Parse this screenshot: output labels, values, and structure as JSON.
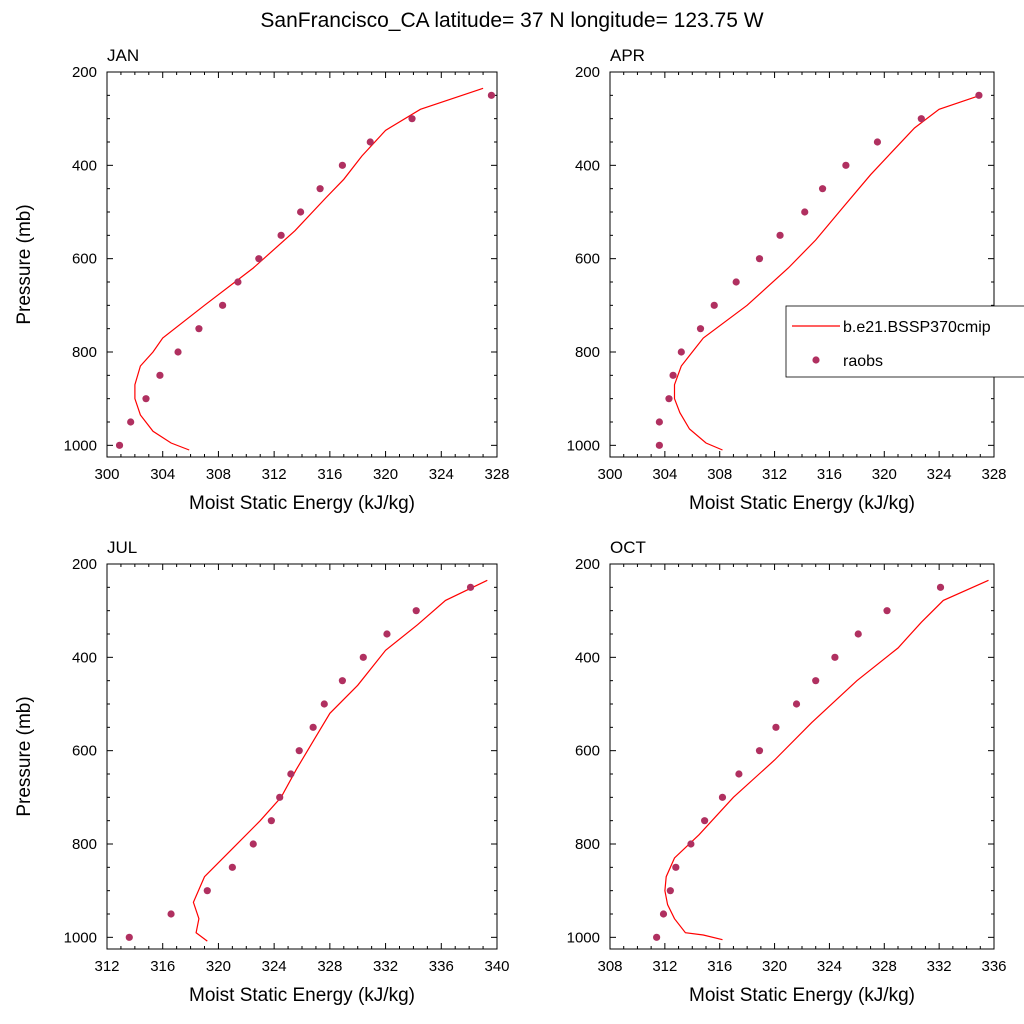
{
  "figure": {
    "title": "SanFrancisco_CA  latitude= 37 N longitude= 123.75 W"
  },
  "colors": {
    "model": "#ff0000",
    "obs": "#b03060",
    "axes": "#000000"
  },
  "legend": {
    "entries": [
      {
        "label": "b.e21.BSSP370cmip",
        "marker": "line",
        "color": "#ff0000"
      },
      {
        "label": "raobs",
        "marker": "dot",
        "color": "#b03060"
      }
    ],
    "placement": "right of APR panel, partially clipped"
  },
  "chart_data": [
    {
      "type": "line",
      "title": "JAN",
      "xlabel": "Moist Static Energy (kJ/kg)",
      "ylabel": "Pressure (mb)",
      "xlim": [
        300,
        328
      ],
      "xticks": [
        300,
        304,
        308,
        312,
        316,
        320,
        324,
        328
      ],
      "ylim": [
        1025,
        200
      ],
      "yticks": [
        200,
        400,
        600,
        800,
        1000
      ],
      "series": [
        {
          "name": "b.e21.BSSP370cmip",
          "kind": "line",
          "points": [
            [
              305.9,
              1010
            ],
            [
              304.6,
              995
            ],
            [
              303.3,
              970
            ],
            [
              302.4,
              935
            ],
            [
              302.0,
              900
            ],
            [
              302.0,
              870
            ],
            [
              302.4,
              830
            ],
            [
              303.3,
              800
            ],
            [
              304.0,
              770
            ],
            [
              307.0,
              700
            ],
            [
              310.5,
              620
            ],
            [
              313.5,
              540
            ],
            [
              315.7,
              470
            ],
            [
              317.0,
              430
            ],
            [
              318.3,
              380
            ],
            [
              320.0,
              325
            ],
            [
              322.5,
              280
            ],
            [
              327.0,
              235
            ]
          ]
        },
        {
          "name": "raobs",
          "kind": "scatter",
          "points": [
            [
              300.9,
              1000
            ],
            [
              301.7,
              950
            ],
            [
              302.8,
              900
            ],
            [
              303.8,
              850
            ],
            [
              305.1,
              800
            ],
            [
              306.6,
              750
            ],
            [
              308.3,
              700
            ],
            [
              309.4,
              650
            ],
            [
              310.9,
              600
            ],
            [
              312.5,
              550
            ],
            [
              313.9,
              500
            ],
            [
              315.3,
              450
            ],
            [
              316.9,
              400
            ],
            [
              318.9,
              350
            ],
            [
              321.9,
              300
            ],
            [
              327.6,
              250
            ]
          ]
        }
      ]
    },
    {
      "type": "line",
      "title": "APR",
      "xlabel": "Moist Static Energy (kJ/kg)",
      "ylabel": "",
      "xlim": [
        300,
        328
      ],
      "xticks": [
        300,
        304,
        308,
        312,
        316,
        320,
        324,
        328
      ],
      "ylim": [
        1025,
        200
      ],
      "yticks": [
        200,
        400,
        600,
        800,
        1000
      ],
      "series": [
        {
          "name": "b.e21.BSSP370cmip",
          "kind": "line",
          "points": [
            [
              308.2,
              1010
            ],
            [
              307.0,
              995
            ],
            [
              305.8,
              965
            ],
            [
              305.1,
              930
            ],
            [
              304.7,
              900
            ],
            [
              304.7,
              870
            ],
            [
              305.2,
              830
            ],
            [
              306.0,
              800
            ],
            [
              306.8,
              770
            ],
            [
              310.0,
              700
            ],
            [
              313.0,
              620
            ],
            [
              315.0,
              560
            ],
            [
              317.0,
              490
            ],
            [
              319.0,
              420
            ],
            [
              320.6,
              370
            ],
            [
              322.2,
              320
            ],
            [
              324.0,
              280
            ],
            [
              327.0,
              250
            ]
          ]
        },
        {
          "name": "raobs",
          "kind": "scatter",
          "points": [
            [
              303.6,
              1000
            ],
            [
              303.6,
              950
            ],
            [
              304.3,
              900
            ],
            [
              304.6,
              850
            ],
            [
              305.2,
              800
            ],
            [
              306.6,
              750
            ],
            [
              307.6,
              700
            ],
            [
              309.2,
              650
            ],
            [
              310.9,
              600
            ],
            [
              312.4,
              550
            ],
            [
              314.2,
              500
            ],
            [
              315.5,
              450
            ],
            [
              317.2,
              400
            ],
            [
              319.5,
              350
            ],
            [
              322.7,
              300
            ],
            [
              326.9,
              250
            ]
          ]
        }
      ]
    },
    {
      "type": "line",
      "title": "JUL",
      "xlabel": "Moist Static Energy (kJ/kg)",
      "ylabel": "Pressure (mb)",
      "xlim": [
        312,
        340
      ],
      "xticks": [
        312,
        316,
        320,
        324,
        328,
        332,
        336,
        340
      ],
      "ylim": [
        1025,
        200
      ],
      "yticks": [
        200,
        400,
        600,
        800,
        1000
      ],
      "series": [
        {
          "name": "b.e21.BSSP370cmip",
          "kind": "line",
          "points": [
            [
              319.2,
              1008
            ],
            [
              318.4,
              990
            ],
            [
              318.6,
              960
            ],
            [
              318.2,
              925
            ],
            [
              319.0,
              870
            ],
            [
              321.0,
              810
            ],
            [
              323.0,
              750
            ],
            [
              324.5,
              700
            ],
            [
              325.6,
              640
            ],
            [
              326.8,
              580
            ],
            [
              328.0,
              520
            ],
            [
              330.0,
              460
            ],
            [
              332.0,
              385
            ],
            [
              334.3,
              330
            ],
            [
              336.3,
              278
            ],
            [
              339.3,
              235
            ]
          ]
        },
        {
          "name": "raobs",
          "kind": "scatter",
          "points": [
            [
              313.6,
              1000
            ],
            [
              316.6,
              950
            ],
            [
              319.2,
              900
            ],
            [
              321.0,
              850
            ],
            [
              322.5,
              800
            ],
            [
              323.8,
              750
            ],
            [
              324.4,
              700
            ],
            [
              325.2,
              650
            ],
            [
              325.8,
              600
            ],
            [
              326.8,
              550
            ],
            [
              327.6,
              500
            ],
            [
              328.9,
              450
            ],
            [
              330.4,
              400
            ],
            [
              332.1,
              350
            ],
            [
              334.2,
              300
            ],
            [
              338.1,
              250
            ]
          ]
        }
      ]
    },
    {
      "type": "line",
      "title": "OCT",
      "xlabel": "Moist Static Energy (kJ/kg)",
      "ylabel": "",
      "xlim": [
        308,
        336
      ],
      "xticks": [
        308,
        312,
        316,
        320,
        324,
        328,
        332,
        336
      ],
      "ylim": [
        1025,
        200
      ],
      "yticks": [
        200,
        400,
        600,
        800,
        1000
      ],
      "series": [
        {
          "name": "b.e21.BSSP370cmip",
          "kind": "line",
          "points": [
            [
              316.2,
              1005
            ],
            [
              314.8,
              995
            ],
            [
              313.5,
              990
            ],
            [
              312.7,
              960
            ],
            [
              312.2,
              930
            ],
            [
              312.0,
              900
            ],
            [
              312.1,
              870
            ],
            [
              312.7,
              830
            ],
            [
              314.5,
              780
            ],
            [
              317.0,
              700
            ],
            [
              320.0,
              620
            ],
            [
              322.7,
              540
            ],
            [
              326.0,
              450
            ],
            [
              329.0,
              380
            ],
            [
              330.7,
              325
            ],
            [
              332.3,
              278
            ],
            [
              335.6,
              235
            ]
          ]
        },
        {
          "name": "raobs",
          "kind": "scatter",
          "points": [
            [
              311.4,
              1000
            ],
            [
              311.9,
              950
            ],
            [
              312.4,
              900
            ],
            [
              312.8,
              850
            ],
            [
              313.9,
              800
            ],
            [
              314.9,
              750
            ],
            [
              316.2,
              700
            ],
            [
              317.4,
              650
            ],
            [
              318.9,
              600
            ],
            [
              320.1,
              550
            ],
            [
              321.6,
              500
            ],
            [
              323.0,
              450
            ],
            [
              324.4,
              400
            ],
            [
              326.1,
              350
            ],
            [
              328.2,
              300
            ],
            [
              332.1,
              250
            ]
          ]
        }
      ]
    }
  ]
}
